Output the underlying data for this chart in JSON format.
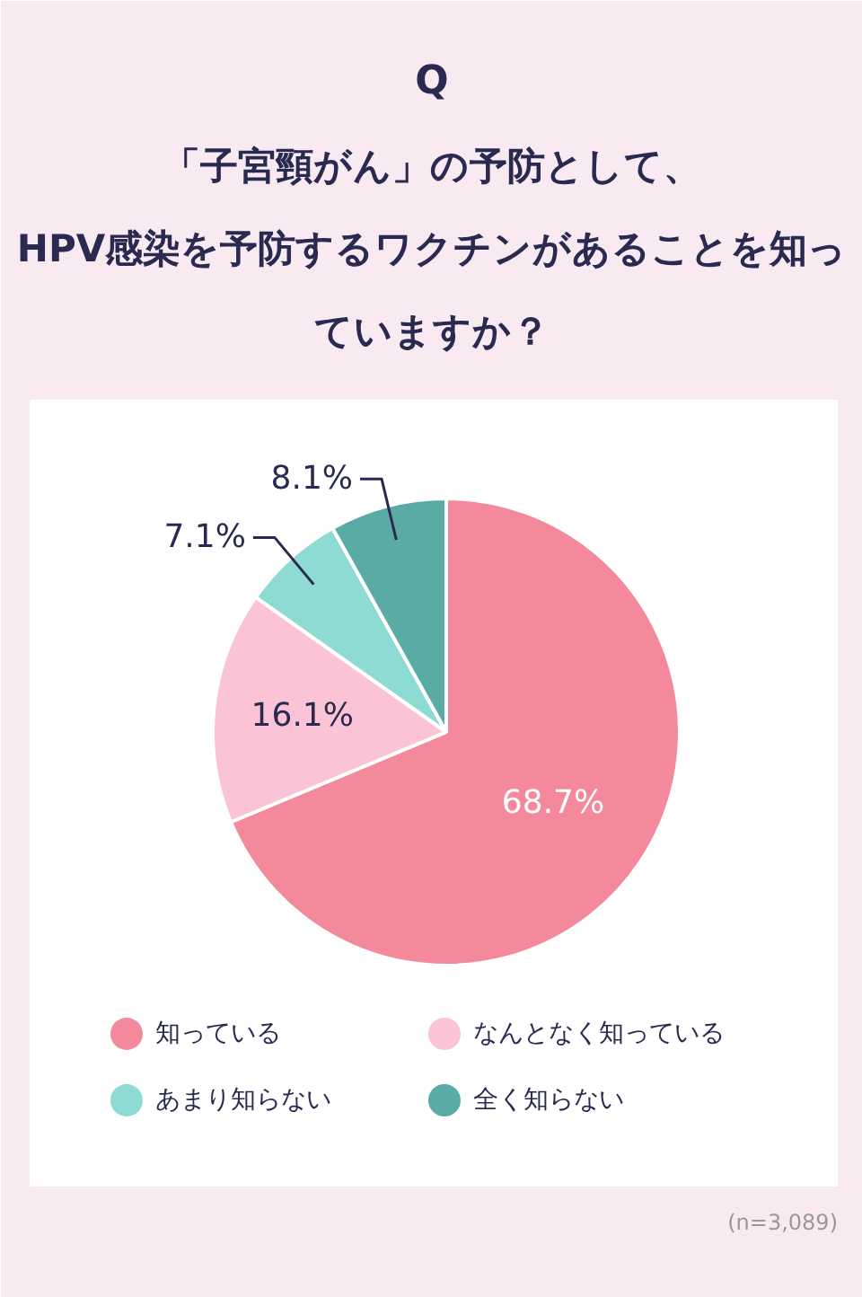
{
  "chart_data": {
    "type": "pie",
    "title": "Q",
    "subtitle": "「子宮頸がん」の予防として、HPV感染を予防するワクチンがあることを知っていますか？",
    "categories": [
      "知っている",
      "なんとなく知っている",
      "あまり知らない",
      "全く知らない"
    ],
    "values": [
      68.7,
      16.1,
      7.1,
      8.1
    ],
    "value_labels": [
      "68.7%",
      "16.1%",
      "7.1%",
      "8.1%"
    ],
    "colors": [
      "#f4899b",
      "#fbc4d6",
      "#8ddbd3",
      "#5aaba3"
    ],
    "legend": "bottom",
    "annotations": [
      "(n=3,089)"
    ]
  }
}
